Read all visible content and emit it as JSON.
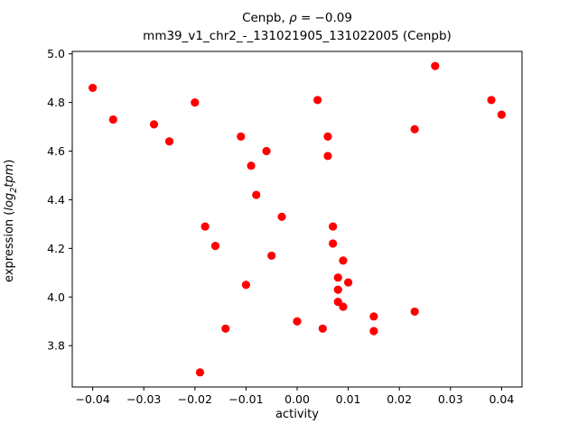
{
  "chart_data": {
    "type": "scatter",
    "title": "Cenpb, ρ = −0.09",
    "title_parts": {
      "prefix": "Cenpb, ",
      "rho": "ρ",
      "rest": " = −0.09"
    },
    "subtitle": "mm39_v1_chr2_-_131021905_131022005 (Cenpb)",
    "xlabel": "activity",
    "ylabel": "expression (log2tpm)",
    "ylabel_parts": {
      "prefix": "expression (",
      "italic1": "log",
      "sub": "2",
      "italic2": "tpm",
      "suffix": ")"
    },
    "marker_color": "#ff0000",
    "grid": false,
    "legend": "none",
    "xlim": [
      -0.044,
      0.044
    ],
    "ylim": [
      3.63,
      5.01
    ],
    "xticks": [
      {
        "value": -0.04,
        "label": "−0.04"
      },
      {
        "value": -0.03,
        "label": "−0.03"
      },
      {
        "value": -0.02,
        "label": "−0.02"
      },
      {
        "value": -0.01,
        "label": "−0.01"
      },
      {
        "value": 0.0,
        "label": "0.00"
      },
      {
        "value": 0.01,
        "label": "0.01"
      },
      {
        "value": 0.02,
        "label": "0.02"
      },
      {
        "value": 0.03,
        "label": "0.03"
      },
      {
        "value": 0.04,
        "label": "0.04"
      }
    ],
    "yticks": [
      {
        "value": 3.8,
        "label": "3.8"
      },
      {
        "value": 4.0,
        "label": "4.0"
      },
      {
        "value": 4.2,
        "label": "4.2"
      },
      {
        "value": 4.4,
        "label": "4.4"
      },
      {
        "value": 4.6,
        "label": "4.6"
      },
      {
        "value": 4.8,
        "label": "4.8"
      },
      {
        "value": 5.0,
        "label": "5.0"
      }
    ],
    "points": [
      [
        -0.04,
        4.86
      ],
      [
        -0.036,
        4.73
      ],
      [
        -0.028,
        4.71
      ],
      [
        -0.025,
        4.64
      ],
      [
        -0.02,
        4.8
      ],
      [
        -0.019,
        3.69
      ],
      [
        -0.018,
        4.29
      ],
      [
        -0.016,
        4.21
      ],
      [
        -0.014,
        3.87
      ],
      [
        -0.011,
        4.66
      ],
      [
        -0.01,
        4.05
      ],
      [
        -0.009,
        4.54
      ],
      [
        -0.008,
        4.42
      ],
      [
        -0.006,
        4.6
      ],
      [
        -0.005,
        4.17
      ],
      [
        -0.003,
        4.33
      ],
      [
        0.0,
        3.9
      ],
      [
        0.004,
        4.81
      ],
      [
        0.005,
        3.87
      ],
      [
        0.006,
        4.66
      ],
      [
        0.006,
        4.58
      ],
      [
        0.007,
        4.29
      ],
      [
        0.007,
        4.22
      ],
      [
        0.009,
        4.15
      ],
      [
        0.008,
        4.08
      ],
      [
        0.008,
        4.03
      ],
      [
        0.008,
        3.98
      ],
      [
        0.009,
        3.96
      ],
      [
        0.01,
        4.06
      ],
      [
        0.015,
        3.92
      ],
      [
        0.015,
        3.86
      ],
      [
        0.023,
        4.69
      ],
      [
        0.023,
        3.94
      ],
      [
        0.027,
        4.95
      ],
      [
        0.038,
        4.81
      ],
      [
        0.04,
        4.75
      ]
    ]
  }
}
